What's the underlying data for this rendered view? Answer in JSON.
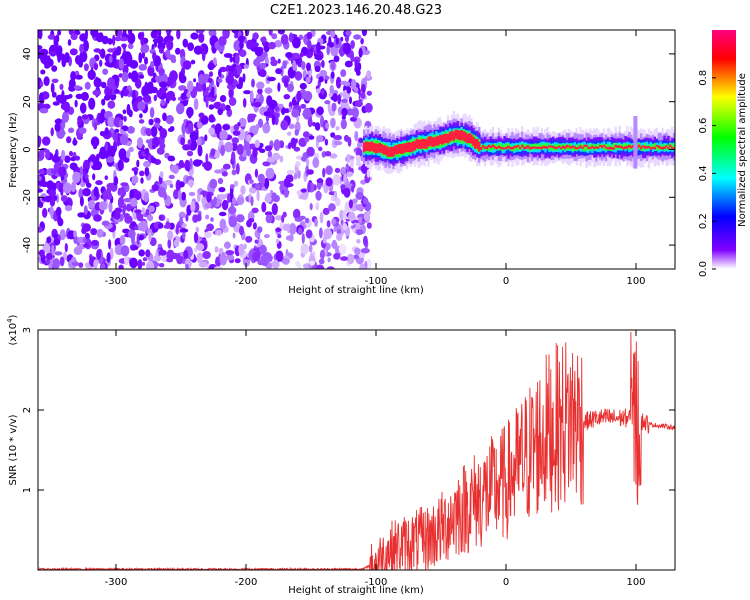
{
  "title": "C2E1.2023.146.20.48.G23",
  "chart_data": [
    {
      "type": "heatmap",
      "title": "C2E1.2023.146.20.48.G23",
      "xlabel": "Height of straight line (km)",
      "ylabel": "Frequency (Hz)",
      "xlim": [
        -360,
        130
      ],
      "ylim": [
        -50,
        50
      ],
      "x_ticks": [
        -300,
        -200,
        -100,
        0,
        100
      ],
      "y_ticks": [
        -40,
        -20,
        0,
        20,
        40
      ],
      "colorbar": {
        "label": "Normalized spectral amplitude",
        "range": [
          0,
          1
        ],
        "ticks": [
          "0.0",
          "0.2",
          "0.4",
          "0.6",
          "0.8"
        ],
        "colormap": [
          "#ffffff",
          "#8000ff",
          "#0000ff",
          "#00ffff",
          "#00ff00",
          "#ffff00",
          "#ff0000",
          "#ff0080"
        ]
      },
      "noise_region_x": [
        -360,
        -105
      ],
      "ridge": {
        "x": [
          -110,
          -100,
          -90,
          -80,
          -70,
          -60,
          -50,
          -40,
          -30,
          -20,
          -10,
          0,
          20,
          40,
          60,
          80,
          100,
          110,
          130
        ],
        "frequency_hz": [
          1,
          1,
          -1,
          0,
          2,
          3,
          4,
          6,
          5,
          1,
          1,
          1,
          1,
          1,
          1,
          1,
          1,
          1,
          1
        ]
      },
      "grid": false
    },
    {
      "type": "line",
      "xlabel": "Height of straight line (km)",
      "ylabel": "SNR (10 * v/v)",
      "y_multiplier": "(x10",
      "y_multiplier_exp": "4",
      "xlim": [
        -360,
        130
      ],
      "ylim": [
        0,
        3
      ],
      "x_ticks": [
        -300,
        -200,
        -100,
        0,
        100
      ],
      "y_ticks": [
        1,
        2,
        3
      ],
      "series_color": "#e83030",
      "series": [
        {
          "x": [
            -360,
            -300,
            -200,
            -110,
            -100,
            -90,
            -80,
            -70,
            -60,
            -50,
            -40,
            -30,
            -20,
            -10,
            0,
            10,
            20,
            30,
            40,
            50,
            60,
            70,
            80,
            90,
            100,
            110,
            130
          ],
          "y": [
            0.01,
            0.01,
            0.01,
            0.01,
            0.1,
            0.25,
            0.3,
            0.35,
            0.4,
            0.5,
            0.7,
            0.8,
            0.9,
            1.0,
            1.1,
            1.3,
            1.5,
            1.7,
            1.8,
            1.9,
            1.85,
            1.9,
            1.9,
            1.9,
            1.9,
            1.82,
            1.78
          ]
        }
      ],
      "grid": false
    }
  ]
}
